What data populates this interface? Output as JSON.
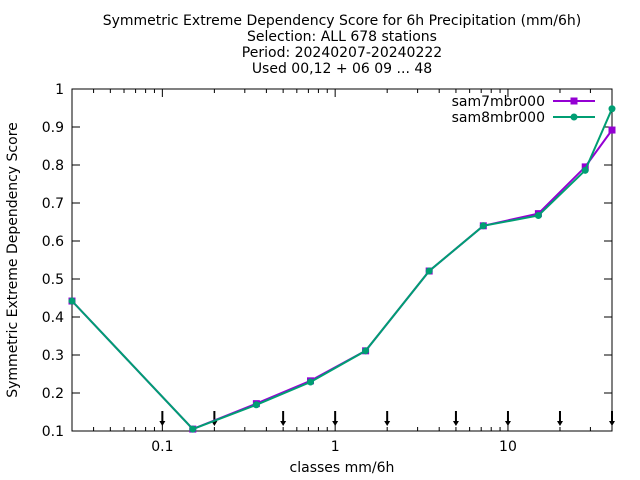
{
  "chart_data": {
    "type": "line",
    "title_lines": [
      "Symmetric Extreme Dependency Score  for 6h Precipitation (mm/6h)",
      "Selection: ALL    678 stations",
      "Period: 20240207-20240222",
      "Used 00,12 + 06 09 ... 48"
    ],
    "xlabel": "classes mm/6h",
    "ylabel": "Symmetric Extreme Dependency Score",
    "x_scale": "log",
    "xlim": [
      0.03,
      40
    ],
    "ylim": [
      0.1,
      1.0
    ],
    "x_ticks": [
      0.1,
      1,
      10
    ],
    "x_tick_labels": [
      "0.1",
      "1",
      "10"
    ],
    "y_ticks": [
      0.1,
      0.2,
      0.3,
      0.4,
      0.5,
      0.6,
      0.7,
      0.8,
      0.9,
      1.0
    ],
    "y_tick_labels": [
      "0.1",
      "0.2",
      "0.3",
      "0.4",
      "0.5",
      "0.6",
      "0.7",
      "0.8",
      "0.9",
      "1"
    ],
    "grid": false,
    "legend_position": "top-right",
    "threshold_markers": [
      0.1,
      0.2,
      0.5,
      1,
      2,
      5,
      10,
      20,
      40
    ],
    "series": [
      {
        "name": "sam7mbr000",
        "color": "#9400d3",
        "x": [
          0.03,
          0.15,
          0.35,
          0.72,
          1.5,
          3.5,
          7.2,
          15,
          28,
          40
        ],
        "y": [
          0.442,
          0.105,
          0.172,
          0.232,
          0.311,
          0.521,
          0.64,
          0.672,
          0.795,
          0.892
        ]
      },
      {
        "name": "sam8mbr000",
        "color": "#009e73",
        "x": [
          0.03,
          0.15,
          0.35,
          0.72,
          1.5,
          3.5,
          7.2,
          15,
          28,
          40
        ],
        "y": [
          0.442,
          0.105,
          0.169,
          0.229,
          0.311,
          0.521,
          0.64,
          0.667,
          0.786,
          0.948
        ]
      }
    ]
  }
}
